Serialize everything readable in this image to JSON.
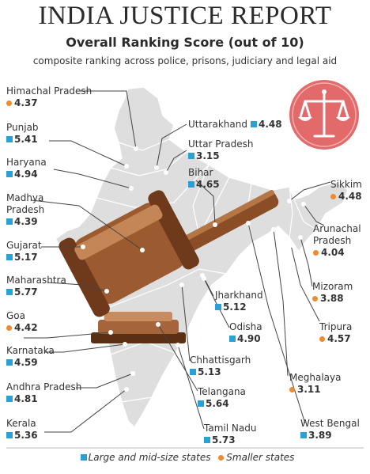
{
  "header": {
    "title": "INDIA JUSTICE REPORT",
    "subtitle": "Overall Ranking Score (out of 10)",
    "caption": "composite ranking across police, prisons, judiciary and legal aid"
  },
  "legend": {
    "large_label": "Large and mid-size states",
    "small_label": "Smaller states"
  },
  "colors": {
    "large_states": "#2aa0d6",
    "smaller_states": "#ee8a30",
    "map_fill": "#dedede",
    "emblem_circle": "#e26a6a"
  },
  "icons": {
    "emblem": "scales-of-justice-icon",
    "illustration": "gavel-icon"
  },
  "states": {
    "himachal_pradesh": {
      "name": "Himachal Pradesh",
      "score": "4.37",
      "group": "smaller"
    },
    "punjab": {
      "name": "Punjab",
      "score": "5.41",
      "group": "large"
    },
    "haryana": {
      "name": "Haryana",
      "score": "4.94",
      "group": "large"
    },
    "madhya_pradesh": {
      "name": "Madhya\nPradesh",
      "score": "4.39",
      "group": "large"
    },
    "gujarat": {
      "name": "Gujarat",
      "score": "5.17",
      "group": "large"
    },
    "maharashtra": {
      "name": "Maharashtra",
      "score": "5.77",
      "group": "large"
    },
    "goa": {
      "name": "Goa",
      "score": "4.42",
      "group": "smaller"
    },
    "karnataka": {
      "name": "Karnataka",
      "score": "4.59",
      "group": "large"
    },
    "andhra_pradesh": {
      "name": "Andhra Pradesh",
      "score": "4.81",
      "group": "large"
    },
    "kerala": {
      "name": "Kerala",
      "score": "5.36",
      "group": "large"
    },
    "uttarakhand": {
      "name": "Uttarakhand",
      "score": "4.48",
      "group": "large"
    },
    "uttar_pradesh": {
      "name": "Uttar Pradesh",
      "score": "3.15",
      "group": "large"
    },
    "bihar": {
      "name": "Bihar",
      "score": "4.65",
      "group": "large"
    },
    "jharkhand": {
      "name": "Jharkhand",
      "score": "5.12",
      "group": "large"
    },
    "odisha": {
      "name": "Odisha",
      "score": "4.90",
      "group": "large"
    },
    "chhattisgarh": {
      "name": "Chhattisgarh",
      "score": "5.13",
      "group": "large"
    },
    "telangana": {
      "name": "Telangana",
      "score": "5.64",
      "group": "large"
    },
    "tamil_nadu": {
      "name": "Tamil Nadu",
      "score": "5.73",
      "group": "large"
    },
    "sikkim": {
      "name": "Sikkim",
      "score": "4.48",
      "group": "smaller"
    },
    "arunachal_pradesh": {
      "name": "Arunachal\nPradesh",
      "score": "4.04",
      "group": "smaller"
    },
    "mizoram": {
      "name": "Mizoram",
      "score": "3.88",
      "group": "smaller"
    },
    "tripura": {
      "name": "Tripura",
      "score": "4.57",
      "group": "smaller"
    },
    "meghalaya": {
      "name": "Meghalaya",
      "score": "3.11",
      "group": "smaller"
    },
    "west_bengal": {
      "name": "West Bengal",
      "score": "3.89",
      "group": "large"
    }
  }
}
